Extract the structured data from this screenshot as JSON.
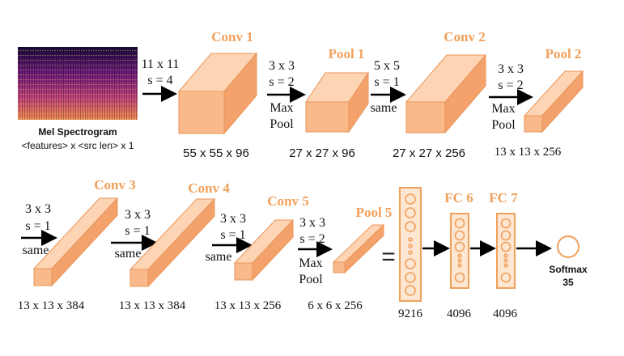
{
  "input": {
    "label": "Mel Spectrogram",
    "shape": "<features> x <src len> x 1"
  },
  "row1": {
    "conv1": {
      "title": "Conv 1",
      "kernel": "11 x 11",
      "stride": "s = 4",
      "dims": "55 x 55 x 96"
    },
    "pool1": {
      "title": "Pool 1",
      "kernel": "3 x 3",
      "stride": "s = 2",
      "op1": "Max",
      "op2": "Pool",
      "dims": "27 x 27 x 96"
    },
    "conv2": {
      "title": "Conv 2",
      "kernel": "5 x 5",
      "stride": "s = 1",
      "pad": "same",
      "dims": "27 x 27 x 256"
    },
    "pool2": {
      "title": "Pool 2",
      "kernel": "3 x 3",
      "stride": "s = 2",
      "op1": "Max",
      "op2": "Pool",
      "dims": "13 x 13 x 256"
    }
  },
  "row2": {
    "conv3": {
      "title": "Conv 3",
      "kernel": "3 x 3",
      "stride": "s = 1",
      "pad": "same",
      "dims": "13 x 13 x 384"
    },
    "conv4": {
      "title": "Conv 4",
      "kernel": "3 x 3",
      "stride": "s = 1",
      "pad": "same",
      "dims": "13 x 13 x 384"
    },
    "conv5": {
      "title": "Conv 5",
      "kernel": "3 x 3",
      "stride": "s = 1",
      "pad": "same",
      "dims": "13 x 13 x 256"
    },
    "pool5": {
      "title": "Pool 5",
      "kernel": "3 x 3",
      "stride": "s = 2",
      "op1": "Max",
      "op2": "Pool",
      "dims": "6 x 6 x 256"
    },
    "equals": "=",
    "flat": {
      "dims": "9216"
    },
    "fc6": {
      "title": "FC 6",
      "dims": "4096"
    },
    "fc7": {
      "title": "FC 7",
      "dims": "4096"
    },
    "softmax": {
      "label": "Softmax",
      "classes": "35"
    }
  },
  "colors": {
    "accent": "#f0a05a",
    "block_front": "#f9b98a",
    "block_top": "#fdd5b4",
    "block_side": "#f3a26c",
    "fc_fill": "#fde6d2"
  }
}
